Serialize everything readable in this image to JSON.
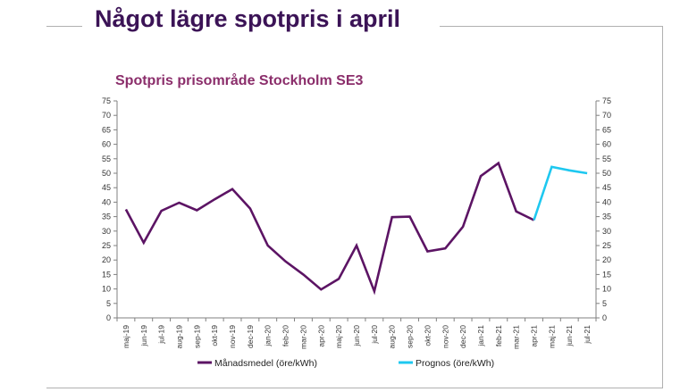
{
  "slide": {
    "title": "Något lägre spotpris i april"
  },
  "colors": {
    "title": "#3b1356",
    "chart_title": "#8b2e6b",
    "series_monthly": "#5c1464",
    "series_forecast": "#1ec8f0"
  },
  "chart_data": {
    "type": "line",
    "title": "Spotpris prisområde Stockholm SE3",
    "xlabel": "",
    "ylabel": "",
    "categories": [
      "maj-19",
      "jun-19",
      "jul-19",
      "aug-19",
      "sep-19",
      "okt-19",
      "nov-19",
      "dec-19",
      "jan-20",
      "feb-20",
      "mar-20",
      "apr-20",
      "maj-20",
      "jun-20",
      "jul-20",
      "aug-20",
      "sep-20",
      "okt-20",
      "nov-20",
      "dec-20",
      "jan-21",
      "feb-21",
      "mar-21",
      "apr-21",
      "maj-21",
      "jun-21",
      "jul-21"
    ],
    "ylim": [
      0,
      75
    ],
    "yticks": [
      0,
      5,
      10,
      15,
      20,
      25,
      30,
      35,
      40,
      45,
      50,
      55,
      60,
      65,
      70,
      75
    ],
    "secondary_yaxis": true,
    "grid": false,
    "legend_position": "bottom",
    "series": [
      {
        "name": "Månadsmedel (öre/kWh)",
        "color": "#5c1464",
        "values": [
          37.5,
          26,
          37,
          39.8,
          37.2,
          41,
          44.5,
          37.8,
          25,
          19.5,
          15,
          9.8,
          13.5,
          25,
          9.2,
          34.8,
          35,
          23,
          24,
          31.5,
          49,
          53.5,
          36.8,
          33.8,
          null,
          null,
          null
        ]
      },
      {
        "name": "Prognos (öre/kWh)",
        "color": "#1ec8f0",
        "values": [
          null,
          null,
          null,
          null,
          null,
          null,
          null,
          null,
          null,
          null,
          null,
          null,
          null,
          null,
          null,
          null,
          null,
          null,
          null,
          null,
          null,
          null,
          null,
          33.8,
          52.2,
          51,
          50
        ]
      }
    ]
  }
}
